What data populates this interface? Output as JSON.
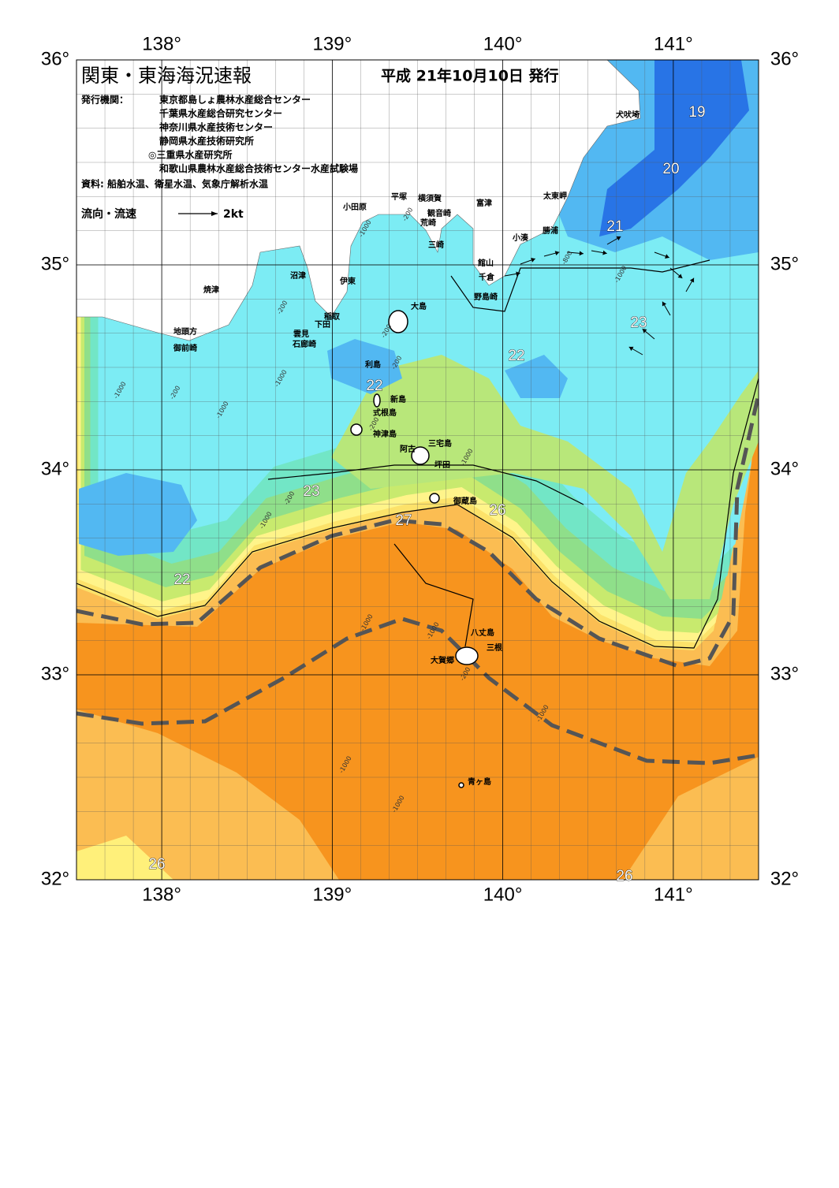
{
  "header": {
    "title": "関東・東海海況速報",
    "issued": "平成 21年10月10日 発行"
  },
  "issuers": {
    "label": "発行機関：",
    "names": [
      "東京都島しょ農林水産総合センター",
      "千葉県水産総合研究センター",
      "神奈川県水産技術センター",
      "静岡県水産技術研究所",
      "◎三重県水産研究所",
      "和歌山県農林水産総合技術センター水産試験場"
    ]
  },
  "sources": "資料: 船舶水温、衛星水温、気象庁解析水温",
  "legend": {
    "label": "流向・流速",
    "scale": "2kt"
  },
  "axes": {
    "longitudes": [
      {
        "value": 138,
        "label": "138°"
      },
      {
        "value": 139,
        "label": "139°"
      },
      {
        "value": 140,
        "label": "140°"
      },
      {
        "value": 141,
        "label": "141°"
      }
    ],
    "latitudes": [
      {
        "value": 36,
        "label": "36°"
      },
      {
        "value": 35,
        "label": "35°"
      },
      {
        "value": 34,
        "label": "34°"
      },
      {
        "value": 33,
        "label": "33°"
      },
      {
        "value": 32,
        "label": "32°"
      }
    ]
  },
  "places": [
    "犬吠埼",
    "太東岬",
    "勝浦",
    "小湊",
    "富津",
    "観音崎",
    "横須賀",
    "平塚",
    "小田原",
    "荒崎",
    "三崎",
    "館山",
    "千倉",
    "野島崎",
    "沼津",
    "伊東",
    "焼津",
    "稲取",
    "下田",
    "雲見",
    "石廊崎",
    "地頭方",
    "御前崎",
    "大島",
    "利島",
    "新島",
    "式根島",
    "神津島",
    "三宅島",
    "阿古",
    "坪田",
    "御蔵島",
    "八丈島",
    "三根",
    "大賀郷",
    "青ヶ島"
  ],
  "isotherm_labels": [
    19,
    20,
    21,
    23,
    22,
    22,
    23,
    26,
    27,
    22,
    26,
    26
  ],
  "depth_labels": [
    "-1000",
    "-200",
    "-800",
    "-1000",
    "-200",
    "-200",
    "-200",
    "-1000",
    "-200",
    "-1000",
    "-1000",
    "-200",
    "-1000",
    "-1000",
    "-200",
    "-1000",
    "-1000",
    "-200",
    "-1000",
    "-1000",
    "-1000"
  ]
}
